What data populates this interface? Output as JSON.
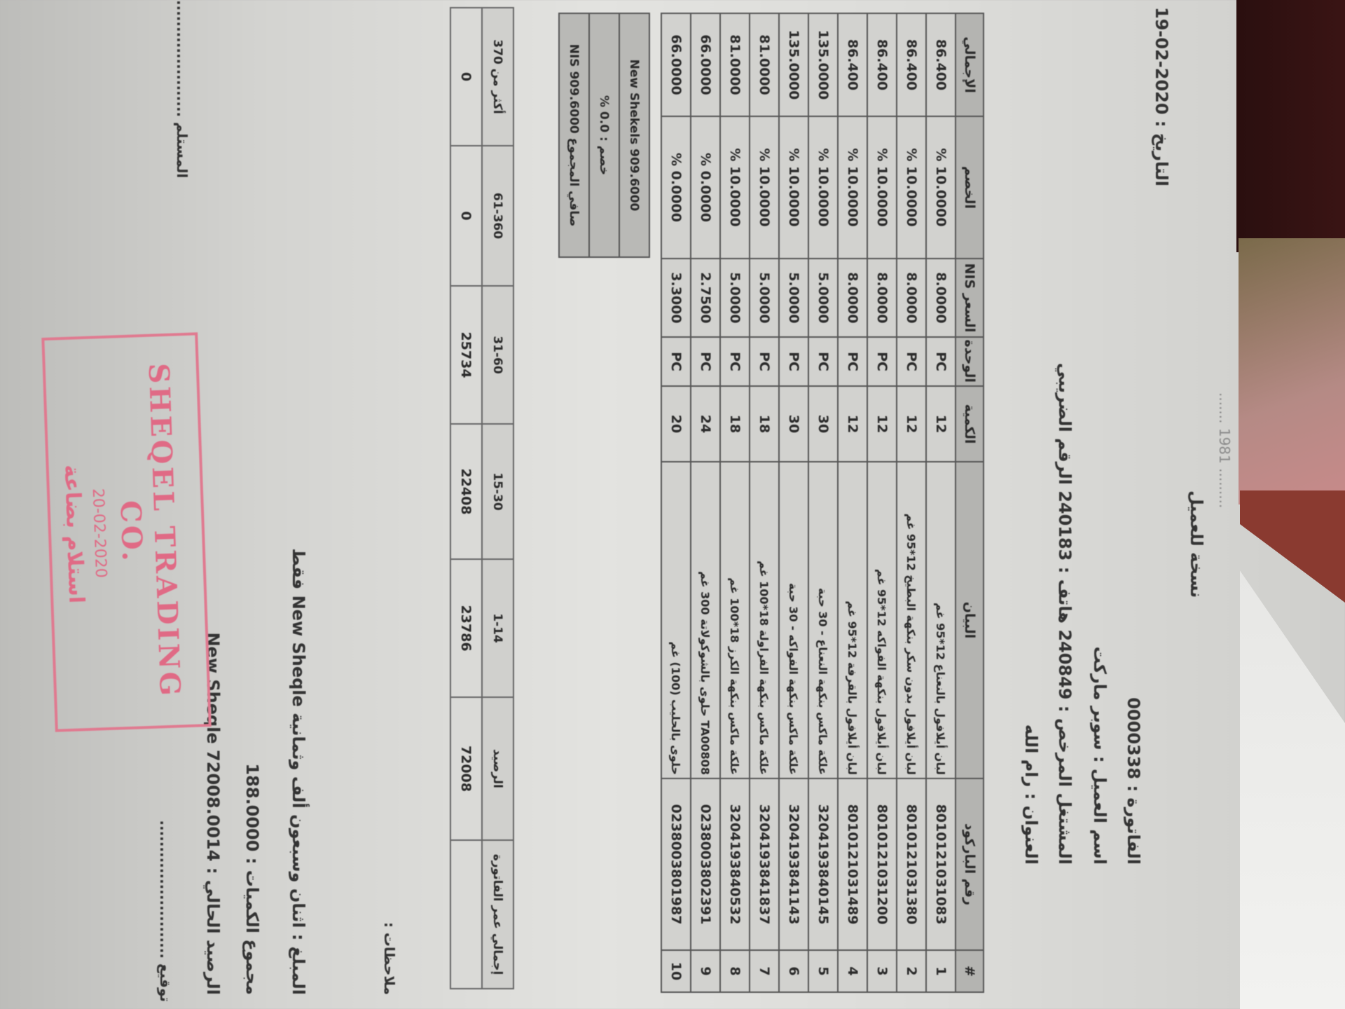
{
  "header": {
    "faint_line": "......... 1981  .......",
    "copy_label": "نسخة للعميل",
    "date": "التاريخ : 2020-02-19",
    "invoice_no": "الفاتورة : 0000338",
    "customer": "اسم العميل : سوبر ماركت",
    "tax_line": "المشتغل المرخص : 240849   هاتف : 240183   الرقم الضريبي",
    "address": "العنوان : رام الله"
  },
  "items_table": {
    "columns": [
      "#",
      "رقم الباركود",
      "البيان",
      "الكمية",
      "الوحدة",
      "السعر NIS",
      "الخصم",
      "الإجمالي"
    ],
    "rows": [
      {
        "n": "1",
        "barcode": "8010121031083",
        "desc": "لبان أيلافول بالنعناع 12*95 غم",
        "qty": "12",
        "unit": "PC",
        "price": "8.0000",
        "discount": "10.0000 %",
        "total": "86.400"
      },
      {
        "n": "2",
        "barcode": "8010121031380",
        "desc": "لبان أيلافول بدون سكر بنكهة البطيخ 12*95 غم",
        "qty": "12",
        "unit": "PC",
        "price": "8.0000",
        "discount": "10.0000 %",
        "total": "86.400"
      },
      {
        "n": "3",
        "barcode": "8010121031200",
        "desc": "لبان أيلافول بنكهة الفواكه 12*95 غم",
        "qty": "12",
        "unit": "PC",
        "price": "8.0000",
        "discount": "10.0000 %",
        "total": "86.400"
      },
      {
        "n": "4",
        "barcode": "8010121031489",
        "desc": "لبان أيلافول بالقرفة 12*95 غم",
        "qty": "12",
        "unit": "PC",
        "price": "8.0000",
        "discount": "10.0000 %",
        "total": "86.400"
      },
      {
        "n": "5",
        "barcode": "3204193840145",
        "desc": "علكة ماكس بنكهة النعناع - 30 حبة",
        "qty": "30",
        "unit": "PC",
        "price": "5.0000",
        "discount": "10.0000 %",
        "total": "135.0000"
      },
      {
        "n": "6",
        "barcode": "3204193841143",
        "desc": "علكة ماكس بنكهة الفواكه - 30 حبة",
        "qty": "30",
        "unit": "PC",
        "price": "5.0000",
        "discount": "10.0000 %",
        "total": "135.0000"
      },
      {
        "n": "7",
        "barcode": "3204193841837",
        "desc": "علكة ماكس بنكهة الفراولة 18*100 غم",
        "qty": "18",
        "unit": "PC",
        "price": "5.0000",
        "discount": "10.0000 %",
        "total": "81.0000"
      },
      {
        "n": "8",
        "barcode": "3204193840532",
        "desc": "علكة ماكس بنكهة الكرز 18*100 غم",
        "qty": "18",
        "unit": "PC",
        "price": "5.0000",
        "discount": "10.0000 %",
        "total": "81.0000"
      },
      {
        "n": "9",
        "barcode": "0238003802391",
        "desc": "TA00808 حلوى بالشوكولاتة 300 غم",
        "qty": "24",
        "unit": "PC",
        "price": "2.7500",
        "discount": "0.0000 %",
        "total": "66.0000"
      },
      {
        "n": "10",
        "barcode": "0238003801987",
        "desc": "حلوى بالحليب (100) غم",
        "qty": "20",
        "unit": "PC",
        "price": "3.3000",
        "discount": "0.0000 %",
        "total": "66.0000"
      }
    ]
  },
  "summary": {
    "subtotal": "909.6000 New Shekels",
    "discount": "خصم : 0.0 %",
    "net": "صافي المجموع 909.6000 NIS"
  },
  "aging": {
    "labels": [
      "إجمالي عمر الفاتورة",
      "الرصيد",
      "1-14",
      "15-30",
      "31-60",
      "61-360",
      "أكثر من 370"
    ],
    "values": [
      "",
      "72008",
      "23786",
      "22408",
      "25734",
      "0",
      "0"
    ]
  },
  "footer": {
    "notes": "ملاحظات :",
    "amount_words": "المبلغ : اثنان وسبعون ألف وثمانية New Sheqle فقط",
    "qty_total": "مجموع الكميات : 188.0000",
    "balance": "الرصيد الحالي : 72008.0014 New Sheqle",
    "signature": "توقيع ..........................",
    "receiver": "المستلم ......................"
  },
  "stamp": {
    "name": "SHEQEL TRADING CO.",
    "date": "20-02-2020",
    "arabic": "استلام بضاعة",
    "color": "#e07a90"
  },
  "colors": {
    "background_dark": "#3a1414",
    "paper": "#dcdcd9"
  }
}
